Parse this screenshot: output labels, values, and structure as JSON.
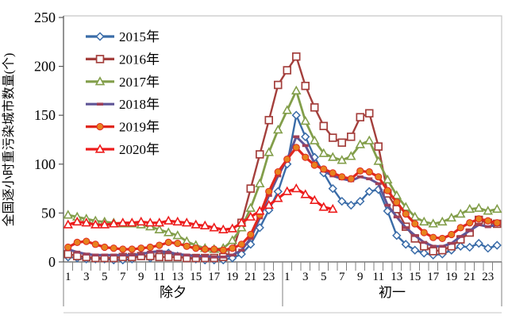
{
  "chart_data": {
    "type": "line",
    "title": "",
    "ylabel": "全国逐小时重污染城市数量(个)",
    "xlabel": "",
    "ylim": [
      0,
      250
    ],
    "yticks": [
      0,
      50,
      100,
      150,
      200,
      250
    ],
    "grid": false,
    "legend_position": "upper-left-inside",
    "x_groups": [
      {
        "label": "除夕",
        "hours": 24
      },
      {
        "label": "初一",
        "hours": 24
      }
    ],
    "x_tick_labels": [
      "1",
      "3",
      "5",
      "7",
      "9",
      "11",
      "13",
      "15",
      "17",
      "19",
      "21",
      "23"
    ],
    "axis_color": "#595959",
    "tick_color": "#808080",
    "border_color": "#c6c6c6",
    "series": [
      {
        "name": "2015年",
        "color": "#3A6CA8",
        "marker": "diamond",
        "marker_fill": "#ffffff",
        "values": [
          5,
          4,
          3,
          3,
          3,
          2,
          2,
          3,
          7,
          4,
          8,
          9,
          6,
          4,
          3,
          2,
          2,
          2,
          4,
          8,
          18,
          35,
          53,
          72,
          100,
          150,
          128,
          107,
          91,
          75,
          62,
          58,
          62,
          72,
          74,
          52,
          27,
          18,
          12,
          9,
          7,
          8,
          12,
          16,
          15,
          19,
          14,
          17
        ]
      },
      {
        "name": "2016年",
        "color": "#A43F3C",
        "marker": "square",
        "marker_fill": "#ffffff",
        "values": [
          8,
          6,
          5,
          4,
          4,
          4,
          5,
          5,
          6,
          6,
          5,
          5,
          5,
          4,
          4,
          4,
          4,
          5,
          10,
          40,
          75,
          110,
          145,
          181,
          196,
          210,
          180,
          158,
          139,
          127,
          122,
          128,
          148,
          152,
          118,
          70,
          54,
          36,
          24,
          16,
          11,
          12,
          16,
          23,
          30,
          43,
          40,
          39
        ]
      },
      {
        "name": "2017年",
        "color": "#829E4A",
        "marker": "triangle",
        "marker_fill": "#ffffff",
        "values": [
          48,
          46,
          44,
          42,
          41,
          40,
          39,
          39,
          38,
          36,
          33,
          30,
          27,
          21,
          17,
          14,
          13,
          14,
          22,
          35,
          55,
          80,
          112,
          135,
          155,
          175,
          144,
          124,
          111,
          107,
          104,
          108,
          120,
          124,
          103,
          84,
          68,
          56,
          46,
          41,
          39,
          41,
          45,
          49,
          54,
          55,
          52,
          54
        ]
      },
      {
        "name": "2018年",
        "color": "#5F5596",
        "marker": "dash",
        "marker_fill": "#A04058",
        "values": [
          13,
          10,
          8,
          7,
          7,
          7,
          7,
          7,
          8,
          10,
          11,
          10,
          8,
          7,
          6,
          6,
          5,
          5,
          7,
          12,
          24,
          45,
          68,
          88,
          105,
          128,
          119,
          101,
          93,
          88,
          85,
          83,
          87,
          85,
          80,
          58,
          46,
          35,
          27,
          20,
          16,
          16,
          19,
          26,
          32,
          38,
          36,
          38
        ]
      },
      {
        "name": "2019年",
        "color": "#E0281E",
        "marker": "circle",
        "marker_fill": "#E8821E",
        "values": [
          15,
          20,
          21,
          18,
          15,
          14,
          13,
          13,
          14,
          15,
          17,
          20,
          19,
          16,
          14,
          13,
          13,
          12,
          14,
          18,
          28,
          48,
          72,
          92,
          105,
          117,
          107,
          99,
          95,
          91,
          87,
          85,
          93,
          92,
          87,
          73,
          61,
          49,
          39,
          30,
          25,
          24,
          28,
          35,
          40,
          44,
          42,
          40
        ]
      },
      {
        "name": "2020年",
        "color": "#ED1C1C",
        "marker": "triangle",
        "marker_fill": "#ffffff",
        "values": [
          38,
          41,
          40,
          38,
          38,
          39,
          40,
          40,
          41,
          40,
          40,
          42,
          41,
          40,
          38,
          37,
          35,
          33,
          34,
          40,
          46,
          52,
          58,
          65,
          72,
          75,
          69,
          63,
          56,
          54
        ]
      }
    ]
  }
}
